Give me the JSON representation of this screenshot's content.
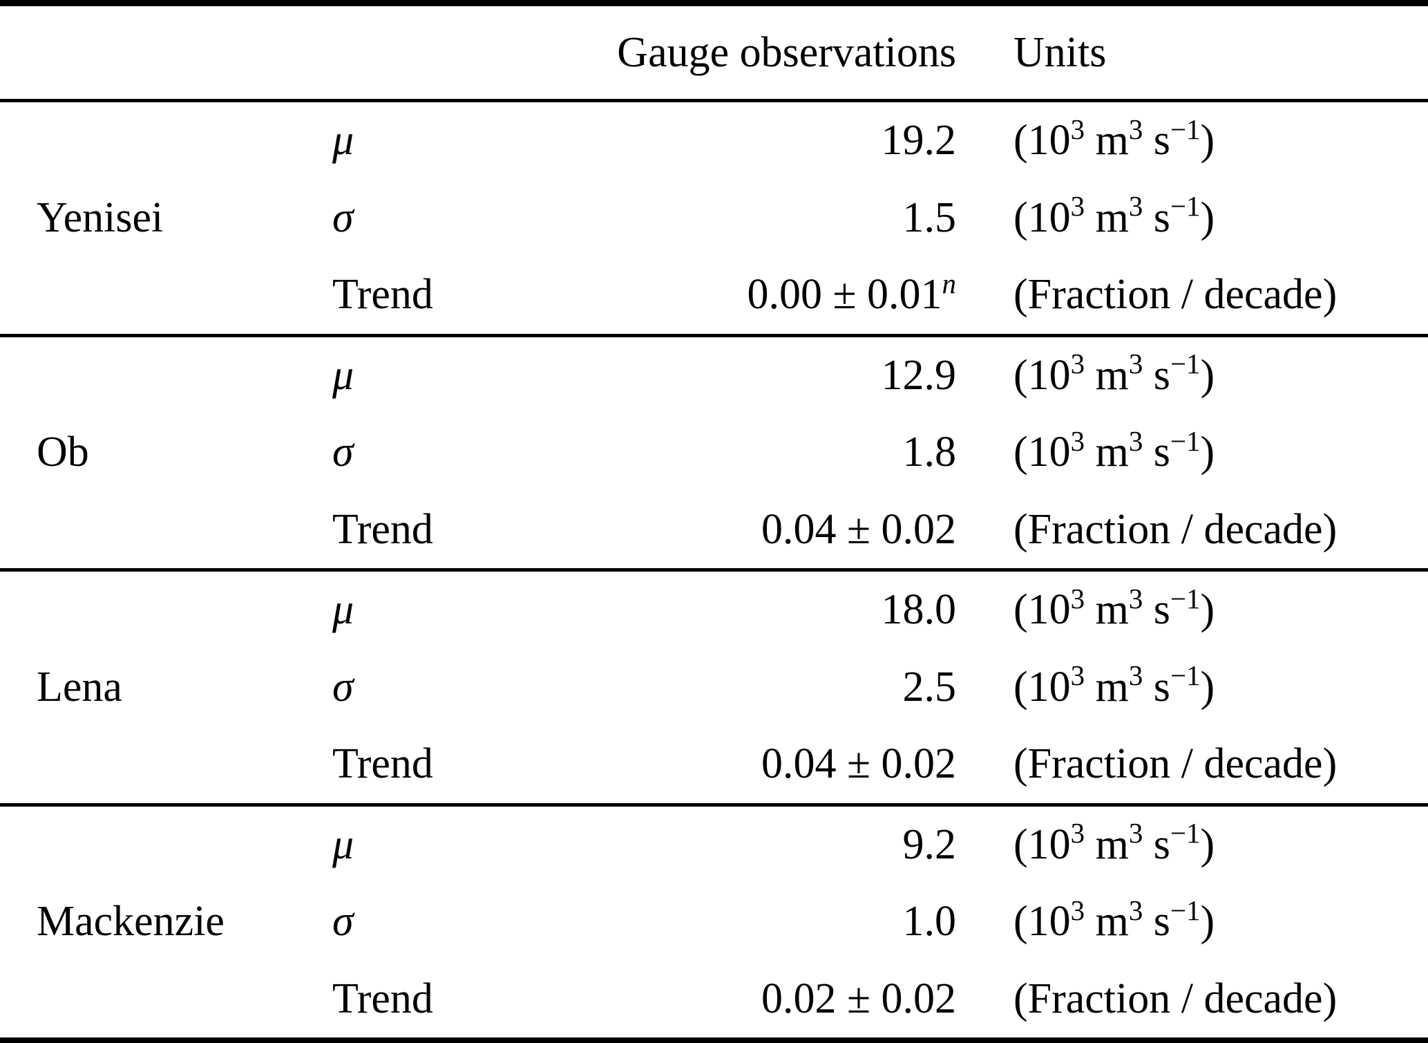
{
  "table": {
    "headers": {
      "observations": "Gauge observations",
      "units": "Units"
    },
    "params": {
      "mu": "μ",
      "sigma": "σ",
      "trend": "Trend"
    },
    "units": {
      "flow": {
        "p0": "(10",
        "s0": "3",
        "p1": " m",
        "s1": "3",
        "p2": " s",
        "s2": "−1",
        "p3": ")"
      },
      "trend": {
        "p0": "(Fraction / decade)"
      }
    },
    "sections": [
      {
        "river": "Yenisei",
        "mu": "19.2",
        "sigma": "1.5",
        "trend": "0.00 ± 0.01",
        "trend_sup": "n"
      },
      {
        "river": "Ob",
        "mu": "12.9",
        "sigma": "1.8",
        "trend": "0.04 ± 0.02"
      },
      {
        "river": "Lena",
        "mu": "18.0",
        "sigma": "2.5",
        "trend": "0.04 ± 0.02"
      },
      {
        "river": "Mackenzie",
        "mu": "9.2",
        "sigma": "1.0",
        "trend": "0.02 ± 0.02"
      }
    ]
  }
}
